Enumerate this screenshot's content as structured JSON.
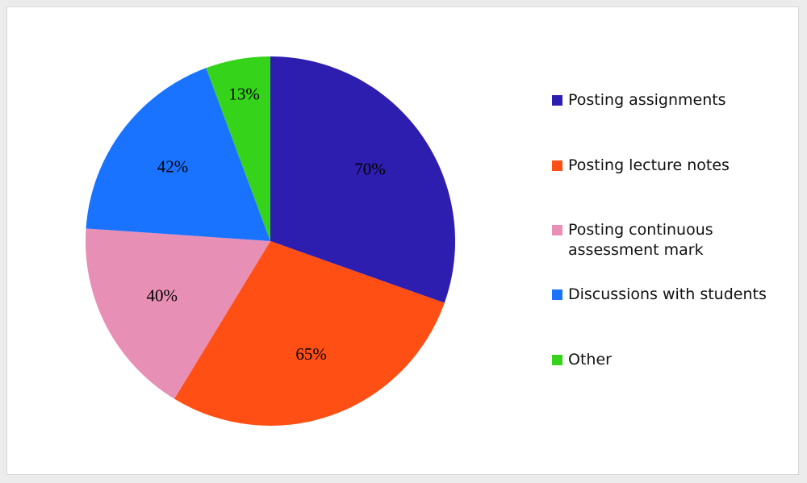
{
  "chart_data": {
    "type": "pie",
    "title": "",
    "categories": [
      "Posting assignments",
      "Posting lecture notes",
      "Posting continuous assessment mark",
      "Discussions with students",
      "Other"
    ],
    "values": [
      70,
      65,
      40,
      42,
      13
    ],
    "value_labels": [
      "70%",
      "65%",
      "40%",
      "42%",
      "13%"
    ],
    "colors": [
      "#2e1eb0",
      "#ff4f14",
      "#e88fb5",
      "#1a73ff",
      "#35d41b"
    ],
    "legend_position": "right",
    "start_angle": "12 o'clock",
    "direction": "clockwise"
  },
  "legend": {
    "items": [
      {
        "label": "Posting assignments",
        "color": "#2e1eb0"
      },
      {
        "label": "Posting lecture notes",
        "color": "#ff4f14"
      },
      {
        "label": "Posting continuous assessment mark",
        "color": "#e88fb5"
      },
      {
        "label": "Discussions with students",
        "color": "#1a73ff"
      },
      {
        "label": "Other",
        "color": "#35d41b"
      }
    ]
  }
}
